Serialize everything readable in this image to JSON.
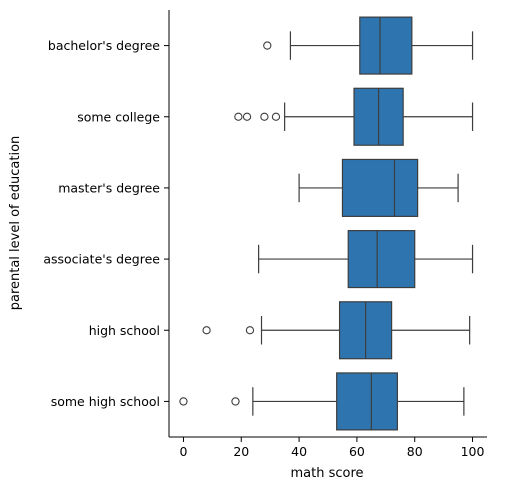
{
  "chart_data": {
    "type": "boxplot",
    "orientation": "horizontal",
    "xlabel": "math score",
    "ylabel": "parental level of education",
    "xlim": [
      -5,
      105
    ],
    "xticks": [
      0,
      20,
      40,
      60,
      80,
      100
    ],
    "grid": false,
    "box_color": "#2e75b0",
    "line_color": "#3d3d3d",
    "categories": [
      "bachelor's degree",
      "some college",
      "master's degree",
      "associate's degree",
      "high school",
      "some high school"
    ],
    "boxes": [
      {
        "category": "bachelor's degree",
        "whisker_low": 37,
        "q1": 61,
        "median": 68,
        "q3": 79,
        "whisker_high": 100,
        "outliers": [
          29
        ]
      },
      {
        "category": "some college",
        "whisker_low": 35,
        "q1": 59,
        "median": 67.5,
        "q3": 76,
        "whisker_high": 100,
        "outliers": [
          19,
          22,
          28,
          32
        ]
      },
      {
        "category": "master's degree",
        "whisker_low": 40,
        "q1": 55,
        "median": 73,
        "q3": 81,
        "whisker_high": 95,
        "outliers": []
      },
      {
        "category": "associate's degree",
        "whisker_low": 26,
        "q1": 57,
        "median": 67,
        "q3": 80,
        "whisker_high": 100,
        "outliers": []
      },
      {
        "category": "high school",
        "whisker_low": 27,
        "q1": 54,
        "median": 63,
        "q3": 72,
        "whisker_high": 99,
        "outliers": [
          8,
          23
        ]
      },
      {
        "category": "some high school",
        "whisker_low": 24,
        "q1": 53,
        "median": 65,
        "q3": 74,
        "whisker_high": 97,
        "outliers": [
          0,
          18
        ]
      }
    ]
  }
}
